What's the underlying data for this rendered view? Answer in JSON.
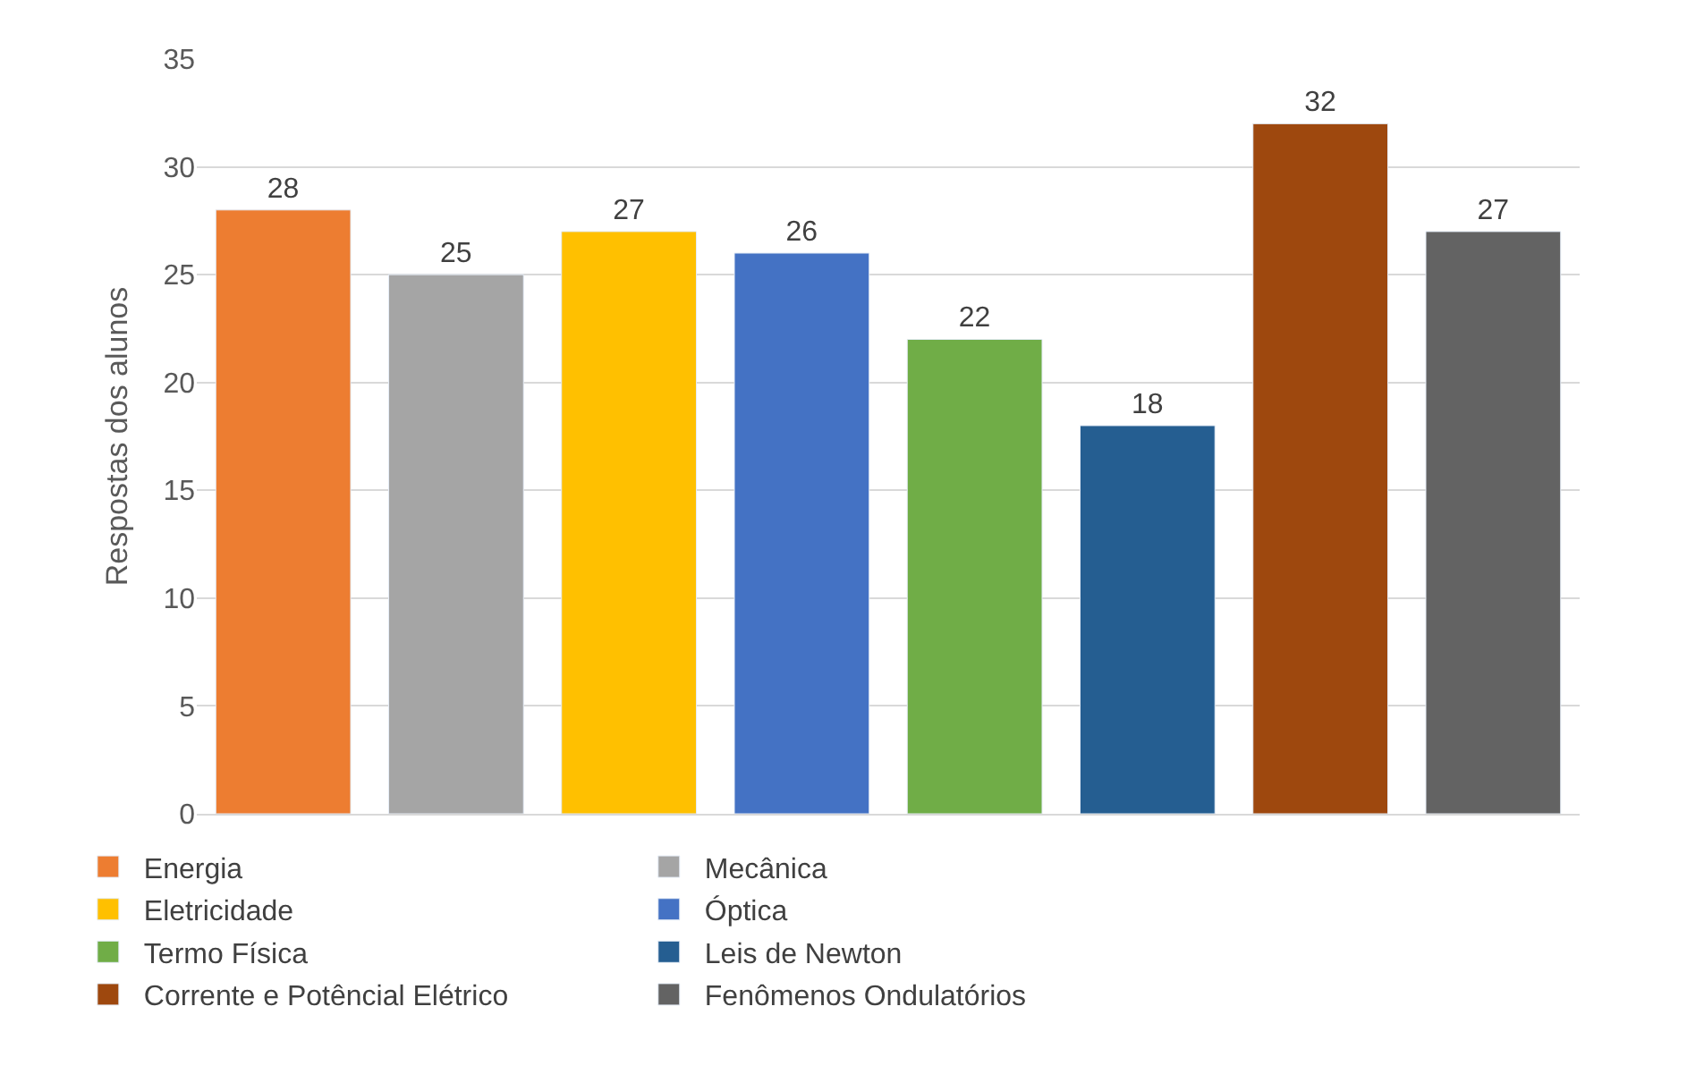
{
  "chart_data": {
    "type": "bar",
    "ylabel": "Respostas dos alunos",
    "categories": [
      null,
      null,
      null,
      null,
      null,
      null,
      null,
      null
    ],
    "series": [
      {
        "name": "Energia",
        "color": "#ed7d31",
        "values": [
          28,
          null,
          null,
          null,
          null,
          null,
          null,
          null
        ]
      },
      {
        "name": "Mecânica",
        "color": "#a5a5a5",
        "values": [
          null,
          25,
          null,
          null,
          null,
          null,
          null,
          null
        ]
      },
      {
        "name": "Eletricidade",
        "color": "#ffc000",
        "values": [
          null,
          null,
          27,
          null,
          null,
          null,
          null,
          null
        ]
      },
      {
        "name": "Óptica",
        "color": "#4472c4",
        "values": [
          null,
          null,
          null,
          26,
          null,
          null,
          null,
          null
        ]
      },
      {
        "name": "Termo Física",
        "color": "#70ad47",
        "values": [
          null,
          null,
          null,
          null,
          22,
          null,
          null,
          null
        ]
      },
      {
        "name": "Leis de Newton",
        "color": "#255e91",
        "values": [
          null,
          null,
          null,
          null,
          null,
          18,
          null,
          null
        ]
      },
      {
        "name": "Corrente e Potêncial Elétrico",
        "color": "#9e480e",
        "values": [
          null,
          null,
          null,
          null,
          null,
          null,
          32,
          null
        ]
      },
      {
        "name": "Fenômenos Ondulatórios",
        "color": "#636363",
        "values": [
          null,
          null,
          null,
          null,
          null,
          null,
          null,
          27
        ]
      }
    ],
    "ylim": [
      0,
      35
    ],
    "yticks": [
      0,
      5,
      10,
      15,
      20,
      25,
      30,
      35
    ],
    "grid": "y",
    "legend": "bottom",
    "data_labels": true,
    "tick_labels": "y"
  }
}
